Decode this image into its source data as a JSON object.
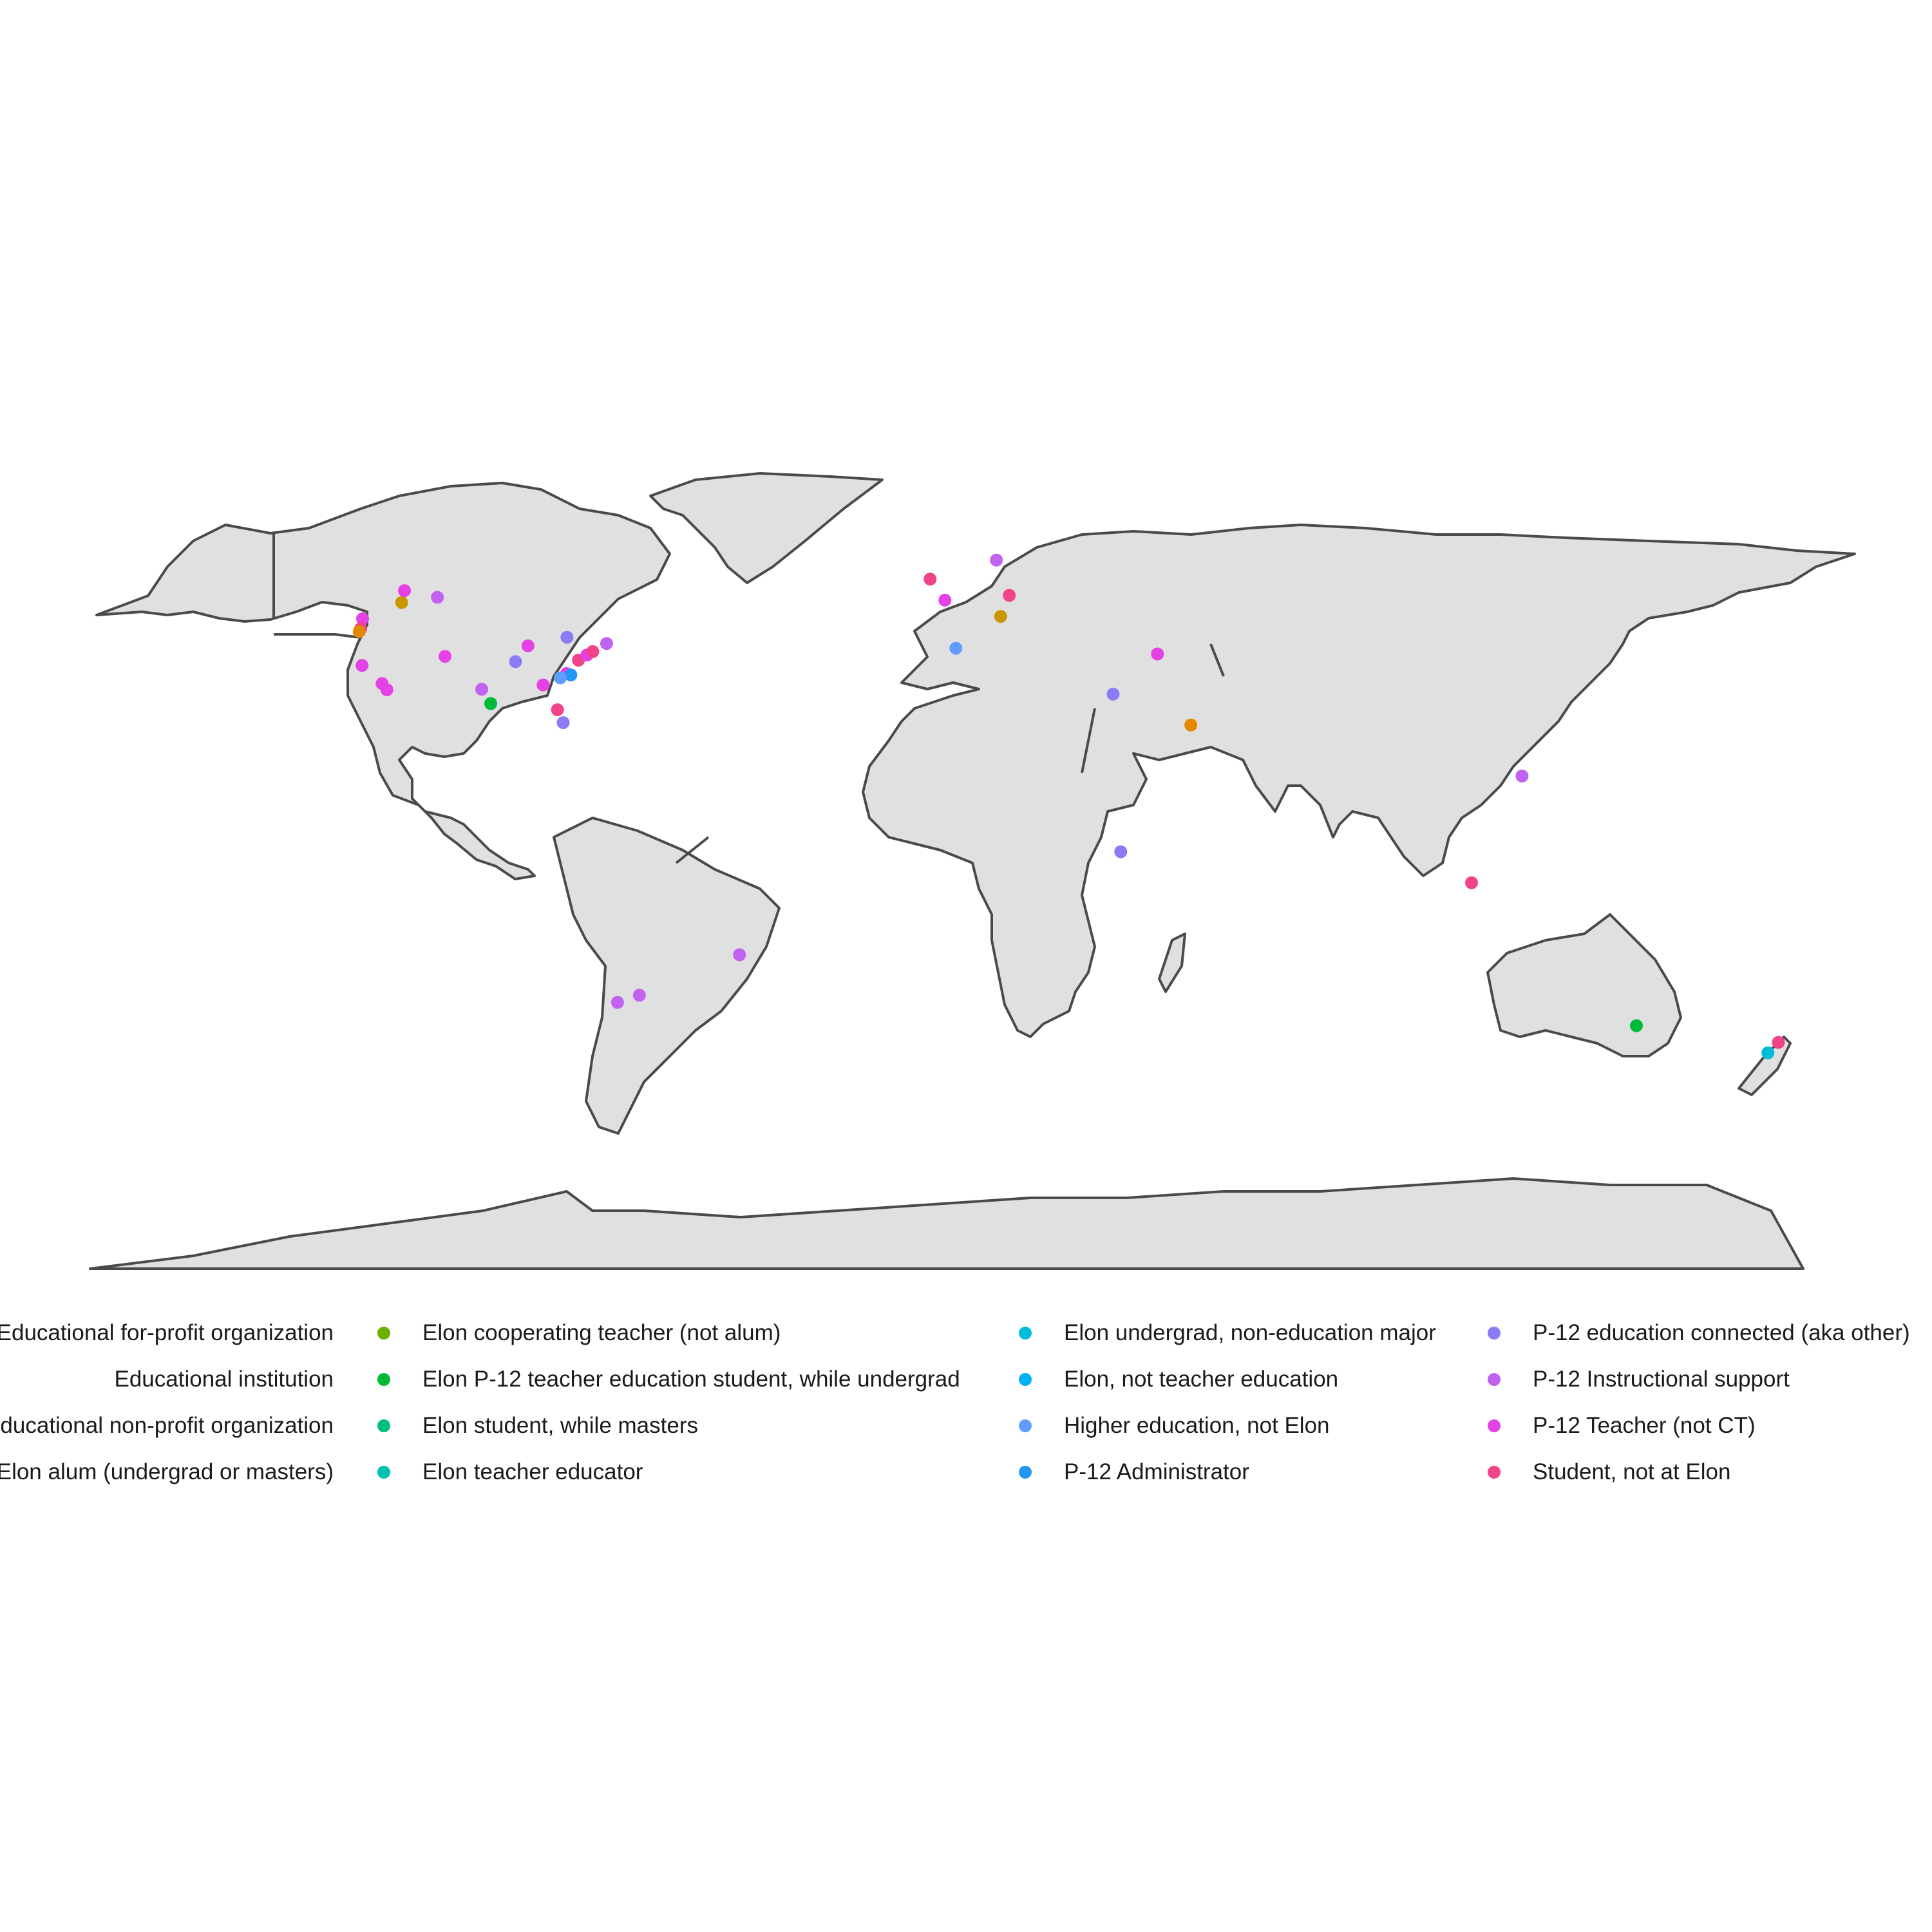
{
  "colors": {
    "land_fill": "#e0e0e0",
    "border": "#4a4a4a",
    "background": "#ffffff"
  },
  "legend": {
    "items": [
      {
        "label": "Educational for-profit organization",
        "color": "#f8766d"
      },
      {
        "label": "Educational institution",
        "color": "#e58700"
      },
      {
        "label": "Educational non-profit organization",
        "color": "#c99800"
      },
      {
        "label": "Elon alum (undergrad or masters)",
        "color": "#a3a500"
      },
      {
        "label": "Elon cooperating teacher (not alum)",
        "color": "#6bb100"
      },
      {
        "label": "Elon P-12 teacher education student, while undergrad",
        "color": "#00ba38"
      },
      {
        "label": "Elon student, while masters",
        "color": "#00bf7d"
      },
      {
        "label": "Elon teacher educator",
        "color": "#00c0af"
      },
      {
        "label": "Elon undergrad, non-education major",
        "color": "#00bcd8"
      },
      {
        "label": "Elon, not teacher education",
        "color": "#00b0f6"
      },
      {
        "label": "Higher education, not Elon",
        "color": "#619cff"
      },
      {
        "label": "P-12 Administrator",
        "color": "#2196f3"
      },
      {
        "label": "P-12 education connected (aka other)",
        "color": "#8b7cf6"
      },
      {
        "label": "P-12 Instructional support",
        "color": "#c162f0"
      },
      {
        "label": "P-12 Teacher (not CT)",
        "color": "#e442e4"
      },
      {
        "label": "Student, not at Elon",
        "color": "#f0438a"
      }
    ]
  },
  "points": [
    {
      "lon": -122.3,
      "lat": 47.6,
      "category": "P-12 Teacher (not CT)"
    },
    {
      "lon": -122.7,
      "lat": 45.5,
      "category": "Student, not at Elon"
    },
    {
      "lon": -123.0,
      "lat": 44.9,
      "category": "Educational institution"
    },
    {
      "lon": -122.4,
      "lat": 37.8,
      "category": "P-12 Teacher (not CT)"
    },
    {
      "lon": -118.2,
      "lat": 34.0,
      "category": "P-12 Teacher (not CT)"
    },
    {
      "lon": -117.2,
      "lat": 32.7,
      "category": "P-12 Teacher (not CT)"
    },
    {
      "lon": -114.1,
      "lat": 51.0,
      "category": "Educational non-profit organization"
    },
    {
      "lon": -113.5,
      "lat": 53.5,
      "category": "P-12 Teacher (not CT)"
    },
    {
      "lon": -106.6,
      "lat": 52.1,
      "category": "P-12 Instructional support"
    },
    {
      "lon": -105.0,
      "lat": 39.7,
      "category": "P-12 Teacher (not CT)"
    },
    {
      "lon": -97.3,
      "lat": 32.8,
      "category": "P-12 Instructional support"
    },
    {
      "lon": -95.4,
      "lat": 29.8,
      "category": "Elon P-12 teacher education student, while undergrad"
    },
    {
      "lon": -90.2,
      "lat": 38.6,
      "category": "P-12 education connected (aka other)"
    },
    {
      "lon": -87.6,
      "lat": 41.9,
      "category": "P-12 Teacher (not CT)"
    },
    {
      "lon": -84.4,
      "lat": 33.7,
      "category": "P-12 Teacher (not CT)"
    },
    {
      "lon": -81.4,
      "lat": 28.5,
      "category": "Student, not at Elon"
    },
    {
      "lon": -80.2,
      "lat": 25.8,
      "category": "P-12 education connected (aka other)"
    },
    {
      "lon": -79.5,
      "lat": 36.1,
      "category": "P-12 Teacher (not CT)"
    },
    {
      "lon": -78.6,
      "lat": 35.8,
      "category": "P-12 Administrator"
    },
    {
      "lon": -80.8,
      "lat": 35.2,
      "category": "Higher education, not Elon"
    },
    {
      "lon": -77.0,
      "lat": 38.9,
      "category": "Student, not at Elon"
    },
    {
      "lon": -75.2,
      "lat": 40.0,
      "category": "P-12 Teacher (not CT)"
    },
    {
      "lon": -74.0,
      "lat": 40.7,
      "category": "Student, not at Elon"
    },
    {
      "lon": -71.1,
      "lat": 42.4,
      "category": "P-12 Instructional support"
    },
    {
      "lon": -79.4,
      "lat": 43.7,
      "category": "P-12 education connected (aka other)"
    },
    {
      "lon": -3.2,
      "lat": 55.9,
      "category": "Student, not at Elon"
    },
    {
      "lon": -0.1,
      "lat": 51.5,
      "category": "P-12 Teacher (not CT)"
    },
    {
      "lon": 10.7,
      "lat": 59.9,
      "category": "P-12 Instructional support"
    },
    {
      "lon": 13.4,
      "lat": 52.5,
      "category": "Student, not at Elon"
    },
    {
      "lon": 11.6,
      "lat": 48.1,
      "category": "Educational non-profit organization"
    },
    {
      "lon": 2.2,
      "lat": 41.4,
      "category": "Higher education, not Elon"
    },
    {
      "lon": 35.2,
      "lat": 31.8,
      "category": "P-12 education connected (aka other)"
    },
    {
      "lon": 44.5,
      "lat": 40.2,
      "category": "P-12 Teacher (not CT)"
    },
    {
      "lon": 51.5,
      "lat": 25.3,
      "category": "Educational institution"
    },
    {
      "lon": 36.8,
      "lat": -1.3,
      "category": "P-12 education connected (aka other)"
    },
    {
      "lon": 121.0,
      "lat": 14.6,
      "category": "P-12 Instructional support"
    },
    {
      "lon": 110.4,
      "lat": -7.8,
      "category": "Student, not at Elon"
    },
    {
      "lon": 145.0,
      "lat": -37.8,
      "category": "Elon P-12 teacher education student, while undergrad"
    },
    {
      "lon": 174.8,
      "lat": -41.3,
      "category": "Student, not at Elon"
    },
    {
      "lon": 172.6,
      "lat": -43.5,
      "category": "Elon undergrad, non-education major"
    },
    {
      "lon": -43.2,
      "lat": -22.9,
      "category": "P-12 Instructional support"
    },
    {
      "lon": -68.8,
      "lat": -32.9,
      "category": "P-12 Instructional support"
    },
    {
      "lon": -64.2,
      "lat": -31.4,
      "category": "P-12 Instructional support"
    }
  ]
}
